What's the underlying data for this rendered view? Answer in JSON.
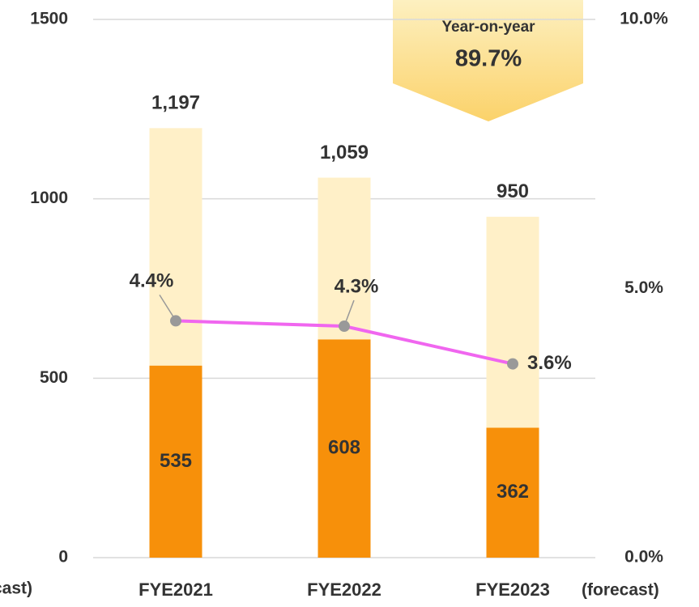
{
  "chart_data": {
    "type": "bar",
    "categories": [
      "FYE2021",
      "FYE2022",
      "FYE2023"
    ],
    "notes": [
      "(forecast)",
      "(forecast)"
    ],
    "series": [
      {
        "color": "#fff0c8",
        "values": [
          1197,
          1059,
          950
        ],
        "value_labels": [
          "1,197",
          "1,059",
          "950"
        ]
      },
      {
        "color": "#f7900a",
        "values": [
          535,
          608,
          362
        ]
      },
      {
        "type": "line",
        "axis": "y2",
        "color": "#f066ef",
        "values": [
          4.4,
          4.3,
          3.6
        ],
        "value_labels": [
          "4.4%",
          "4.3%",
          "3.6%"
        ]
      }
    ],
    "annotation": {
      "title": "Year-on-year",
      "text": "89.7%"
    },
    "ylim": [
      0,
      1500
    ],
    "yticks": [
      0,
      500,
      1000,
      1500
    ],
    "y2lim": [
      0,
      10
    ],
    "y2ticks": [
      {
        "value": 0,
        "label": "0.0%"
      },
      {
        "value": 5,
        "label": "5.0%"
      },
      {
        "value": 10,
        "label": "10.0%"
      }
    ],
    "grid": true
  }
}
